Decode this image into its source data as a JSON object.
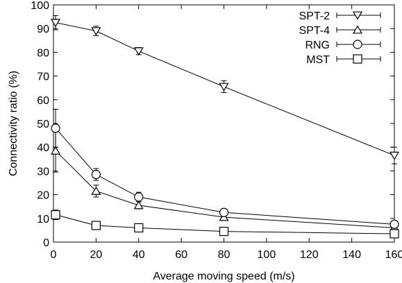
{
  "chart_data": {
    "type": "line",
    "xlabel": "Average moving speed (m/s)",
    "ylabel": "Connectivity ratio (%)",
    "xlim": [
      0,
      160
    ],
    "ylim": [
      0,
      100
    ],
    "xticks": [
      0,
      20,
      40,
      60,
      80,
      100,
      120,
      140,
      160
    ],
    "yticks": [
      0,
      10,
      20,
      30,
      40,
      50,
      60,
      70,
      80,
      90,
      100
    ],
    "grid": false,
    "legend_position": "top-right",
    "error_bars": true,
    "x": [
      1,
      20,
      40,
      80,
      160
    ],
    "series": [
      {
        "name": "SPT-2",
        "marker": "triangle-down",
        "values": [
          92.5,
          89,
          80.5,
          65.5,
          36.5
        ],
        "errors": [
          3,
          2,
          1.5,
          2.5,
          3.5
        ]
      },
      {
        "name": "SPT-4",
        "marker": "triangle-up",
        "values": [
          38.5,
          21.5,
          15.5,
          10.5,
          6
        ],
        "errors": [
          9,
          2.5,
          1.5,
          1,
          0.5
        ]
      },
      {
        "name": "RNG",
        "marker": "circle",
        "values": [
          48,
          28.5,
          19,
          12.5,
          7.5
        ],
        "errors": [
          8,
          2.5,
          2,
          1.5,
          1
        ]
      },
      {
        "name": "MST",
        "marker": "square",
        "values": [
          11.5,
          7,
          6,
          4.5,
          3.5
        ],
        "errors": [
          2,
          1,
          1,
          0.5,
          0.5
        ]
      }
    ]
  }
}
